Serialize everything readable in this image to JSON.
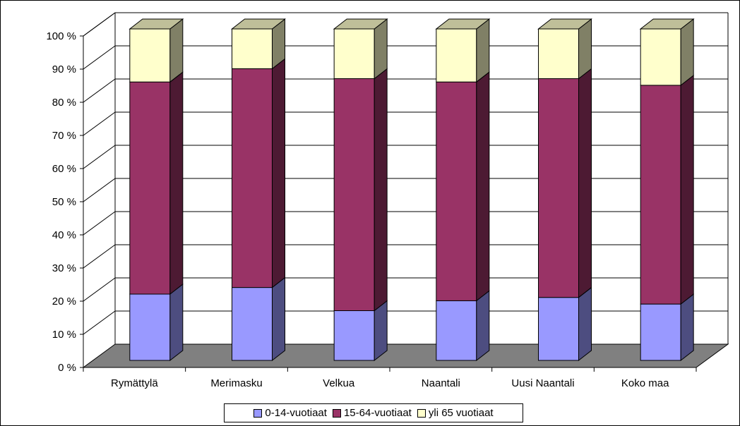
{
  "chart_data": {
    "type": "bar",
    "stacked": true,
    "percent": true,
    "three_d": true,
    "categories": [
      "Rymättylä",
      "Merimasku",
      "Velkua",
      "Naantali",
      "Uusi Naantali",
      "Koko maa"
    ],
    "series": [
      {
        "name": "0-14-vuotiaat",
        "color": "#9999ff",
        "values": [
          20,
          22,
          15,
          18,
          19,
          17
        ]
      },
      {
        "name": "15-64-vuotiaat",
        "color": "#993366",
        "values": [
          64,
          66,
          70,
          66,
          66,
          66
        ]
      },
      {
        "name": "yli 65 vuotiaat",
        "color": "#ffffcc",
        "values": [
          16,
          12,
          15,
          16,
          15,
          17
        ]
      }
    ],
    "y_ticks": [
      "0 %",
      "10 %",
      "20 %",
      "30 %",
      "40 %",
      "50 %",
      "60 %",
      "70 %",
      "80 %",
      "90 %",
      "100 %"
    ],
    "ylim": [
      0,
      100
    ],
    "grid": true,
    "legend_position": "bottom",
    "floor_color": "#808080"
  }
}
